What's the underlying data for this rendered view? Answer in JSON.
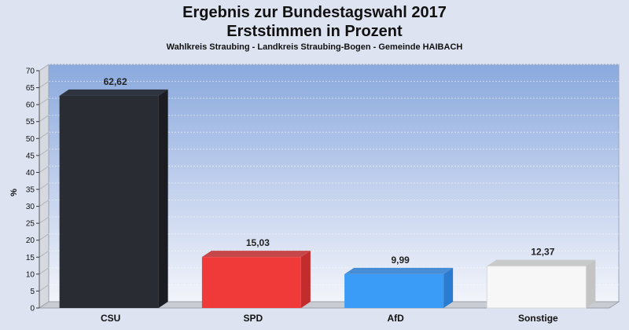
{
  "chart_data": {
    "type": "bar",
    "title": "Ergebnis zur Bundestagswahl 2017",
    "subtitle_line": "Erststimmen in Prozent",
    "region": "Wahlkreis Straubing - Landkreis Straubing-Bogen - Gemeinde HAIBACH",
    "ylabel": "%",
    "xlabel": "",
    "ylim": [
      0,
      70
    ],
    "ytick_step": 5,
    "grid": true,
    "categories": [
      "CSU",
      "SPD",
      "AfD",
      "Sonstige"
    ],
    "values": [
      62.62,
      15.03,
      9.99,
      12.37
    ],
    "value_labels": [
      "62,62",
      "15,03",
      "9,99",
      "12,37"
    ],
    "colors": [
      "#2a2c33",
      "#f03a3a",
      "#3a9cf7",
      "#f7f7f7"
    ],
    "side_colors": [
      "#1c1d22",
      "#c22c2c",
      "#2a7cd0",
      "#c4c4c4"
    ]
  }
}
